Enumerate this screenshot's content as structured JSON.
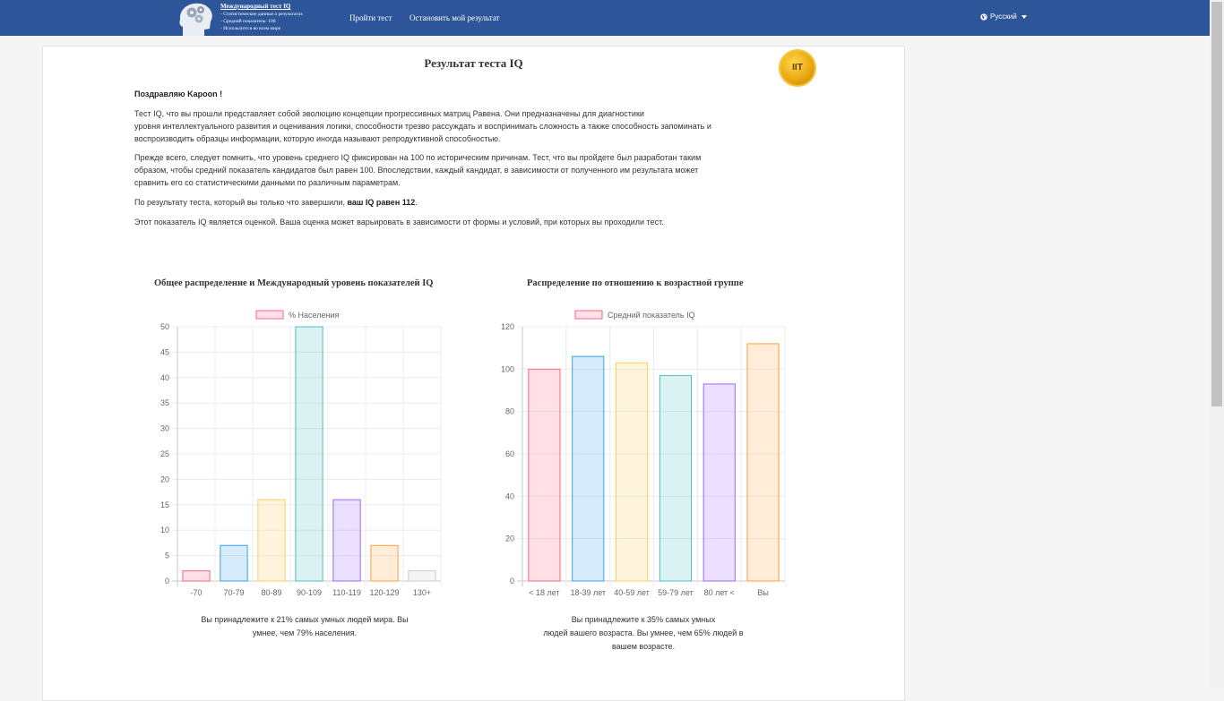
{
  "nav": {
    "brand": {
      "title": "Международный тест IQ",
      "lines": [
        "- Статистические данные о результатах",
        "- Средний показатель: 100",
        "- Используется во всем мире"
      ]
    },
    "links": [
      "Пройти тест",
      "Остановить мой результат"
    ],
    "language": "Русский"
  },
  "page": {
    "title": "Результат теста IQ",
    "badge": "IIT",
    "greeting": "Поздравляю Kapoon !",
    "p1_line1": "Тест IQ, что вы прошли представляет собой эволюцию концепции прогрессивных матриц Равена. Они предназначены для диагностики",
    "p1_line2": "уровня интеллектуального развития и оценивания логики, способности трезво рассуждать и воспринимать сложность а также способность запоминать и",
    "p1_line3": "воспроизводить образцы информации, которую иногда называют репродуктивной способностью.",
    "p2_line1": "Прежде всего, следует помнить, что уровень среднего IQ фиксирован на 100 по историческим причинам. Тест, что вы пройдете был разработан таким",
    "p2_line2": "образом, чтобы средний показатель кандидатов был равен 100. Впоследствии, каждый кандидат, в зависимости от полученного им результата может",
    "p2_line3": "сравнить его со статистическими данными по различным параметрам.",
    "p3_prefix": "По результату теста, который вы только что завершили, ",
    "p3_bold": "ваш IQ равен 112",
    "p3_suffix": ".",
    "p4": "Этот показатель IQ является оценкой. Ваша оценка может варьировать в зависимости от формы и условий, при которых вы проходили тест."
  },
  "chart_data": [
    {
      "type": "bar",
      "title": "Общее распределение и Международный уровень показателей IQ",
      "legend": "% Населения",
      "categories": [
        "-70",
        "70-79",
        "80-89",
        "90-109",
        "110-119",
        "120-129",
        "130+"
      ],
      "values": [
        2,
        7,
        16,
        50,
        16,
        7,
        2
      ],
      "ylim": [
        0,
        50
      ],
      "yticks": [
        0,
        5,
        10,
        15,
        20,
        25,
        30,
        35,
        40,
        45,
        50
      ],
      "colors": [
        "#ff6384",
        "#36a2eb",
        "#ffce56",
        "#4bc0c0",
        "#9966ff",
        "#ff9f40",
        "#c9cbcf"
      ],
      "caption_line1": "Вы принадлежите к 21% самых умных людей мира. Вы",
      "caption_line2": "умнее, чем 79% населения."
    },
    {
      "type": "bar",
      "title": "Распределение по отношению к возрастной группе",
      "legend": "Средний показатель IQ",
      "categories": [
        "< 18 лет",
        "18-39 лет",
        "40-59 лет",
        "59-79 лет",
        "80 лет <",
        "Вы"
      ],
      "values": [
        100,
        106,
        103,
        97,
        93,
        112
      ],
      "ylim": [
        0,
        120
      ],
      "yticks": [
        0,
        20,
        40,
        60,
        80,
        100,
        120
      ],
      "colors": [
        "#ff6384",
        "#36a2eb",
        "#ffce56",
        "#4bc0c0",
        "#9966ff",
        "#ff9f40"
      ],
      "caption_line1": "Вы принадлежите к 35% самых умных",
      "caption_line2": "людей вашего возраста. Вы умнее, чем 65% людей в",
      "caption_line3": "вашем возрасте."
    }
  ]
}
